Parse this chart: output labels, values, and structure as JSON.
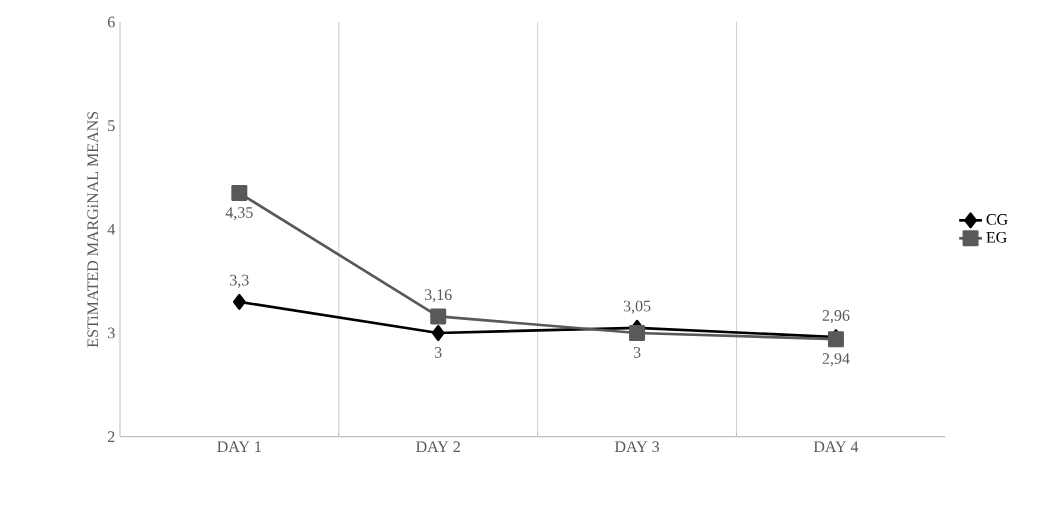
{
  "chart_data": {
    "type": "line",
    "ylabel": "ESTiMATED MARGiNAL MEANS",
    "categories": [
      "DAY 1",
      "DAY 2",
      "DAY 3",
      "DAY 4"
    ],
    "series": [
      {
        "name": "CG",
        "color": "#000000",
        "marker": "diamond",
        "values": [
          3.3,
          3,
          3.05,
          2.96
        ],
        "value_labels": [
          "3,3",
          "3",
          "3,05",
          "2,96"
        ]
      },
      {
        "name": "EG",
        "color": "#595959",
        "marker": "square",
        "values": [
          4.35,
          3.16,
          3,
          2.94
        ],
        "value_labels": [
          "4,35",
          "3,16",
          "3",
          "2,94"
        ]
      }
    ],
    "ylim": [
      2,
      6
    ],
    "yticks": [
      2,
      3,
      4,
      5,
      6
    ],
    "grid": "x",
    "legend": "right"
  }
}
